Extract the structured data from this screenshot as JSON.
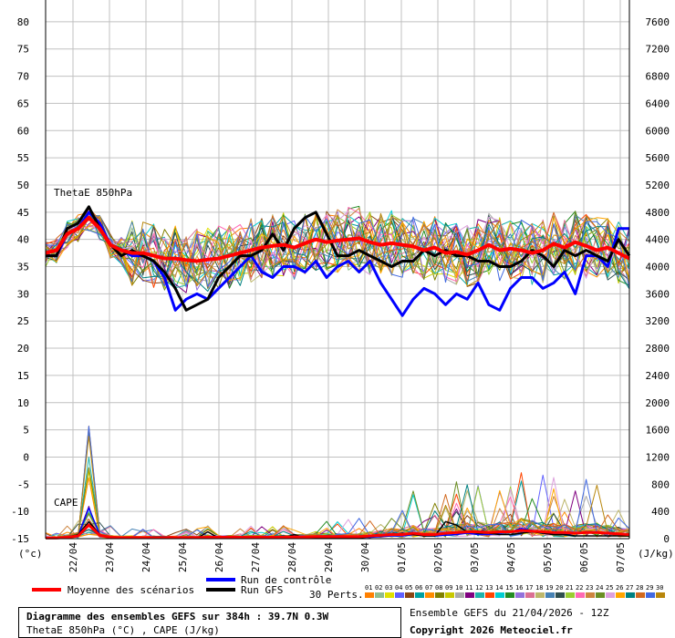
{
  "chart_data": {
    "type": "line",
    "left_axis_unit": "(°c)",
    "right_axis_unit": "(J/kg)",
    "y_left_ticks": [
      -15,
      -10,
      -5,
      0,
      5,
      10,
      15,
      20,
      25,
      30,
      35,
      40,
      45,
      50,
      55,
      60,
      65,
      70,
      75,
      80
    ],
    "y_right_ticks": [
      0,
      400,
      800,
      1200,
      1600,
      2000,
      2400,
      2800,
      3200,
      3600,
      4000,
      4400,
      4800,
      5200,
      5600,
      6000,
      6400,
      6800,
      7200,
      7600
    ],
    "ylim_left": [
      -15,
      84
    ],
    "ylim_right": [
      0,
      7920
    ],
    "x_range": [
      0,
      384
    ],
    "x_ticks": [
      {
        "label": "22/04",
        "hour": 18
      },
      {
        "label": "23/04",
        "hour": 42
      },
      {
        "label": "24/04",
        "hour": 66
      },
      {
        "label": "25/04",
        "hour": 90
      },
      {
        "label": "26/04",
        "hour": 114
      },
      {
        "label": "27/04",
        "hour": 138
      },
      {
        "label": "28/04",
        "hour": 162
      },
      {
        "label": "29/04",
        "hour": 186
      },
      {
        "label": "30/04",
        "hour": 210
      },
      {
        "label": "01/05",
        "hour": 234
      },
      {
        "label": "02/05",
        "hour": 258
      },
      {
        "label": "03/05",
        "hour": 282
      },
      {
        "label": "04/05",
        "hour": 306
      },
      {
        "label": "05/05",
        "hour": 330
      },
      {
        "label": "06/05",
        "hour": 354
      },
      {
        "label": "07/05",
        "hour": 378
      }
    ],
    "grid": true,
    "panel_labels": {
      "thetae": "ThetaE 850hPa",
      "cape": "CAPE"
    },
    "control_run": {
      "name": "Run de contrôle",
      "color": "#0000ff",
      "thetae": [
        37,
        37,
        41,
        42,
        45,
        43,
        39,
        38,
        37,
        37,
        36,
        33,
        27,
        29,
        30,
        29,
        31,
        33,
        35,
        37,
        34,
        33,
        35,
        35,
        34,
        36,
        33,
        35,
        36,
        34,
        36,
        32,
        29,
        26,
        29,
        31,
        30,
        28,
        30,
        29,
        32,
        28,
        27,
        31,
        33,
        33,
        31,
        32,
        34,
        30,
        37,
        37,
        35,
        42,
        42
      ],
      "cape": [
        10,
        10,
        20,
        40,
        450,
        60,
        10,
        10,
        5,
        5,
        5,
        5,
        5,
        5,
        5,
        5,
        5,
        5,
        5,
        5,
        10,
        10,
        10,
        10,
        10,
        20,
        20,
        10,
        20,
        20,
        20,
        30,
        40,
        40,
        60,
        40,
        40,
        50,
        60,
        80,
        60,
        60,
        80,
        100,
        150,
        120,
        80,
        60,
        60,
        80,
        100,
        100,
        80,
        60,
        60
      ]
    },
    "gfs_run": {
      "name": "Run GFS",
      "color": "#000000",
      "thetae": [
        37,
        37,
        42,
        43,
        46,
        42,
        39,
        37,
        38,
        37,
        36,
        34,
        31,
        27,
        28,
        29,
        33,
        35,
        37,
        37,
        38,
        41,
        38,
        42,
        44,
        45,
        41,
        37,
        37,
        38,
        37,
        36,
        35,
        36,
        36,
        38,
        37,
        38,
        37,
        37,
        36,
        36,
        35,
        35,
        36,
        38,
        37,
        35,
        38,
        37,
        38,
        37,
        36,
        40,
        37
      ],
      "cape": [
        10,
        10,
        20,
        60,
        250,
        60,
        10,
        10,
        5,
        5,
        5,
        5,
        5,
        5,
        5,
        100,
        10,
        5,
        5,
        5,
        5,
        5,
        5,
        60,
        10,
        10,
        10,
        10,
        10,
        10,
        30,
        40,
        50,
        80,
        60,
        40,
        40,
        250,
        200,
        100,
        80,
        80,
        60,
        60,
        80,
        100,
        80,
        60,
        60,
        40,
        40,
        40,
        40,
        40,
        40
      ]
    },
    "mean": {
      "name": "Moyenne des scénarios",
      "color": "#ff0000",
      "thetae": [
        37.5,
        38,
        41,
        42,
        44,
        42,
        39,
        38,
        37.5,
        37.5,
        37,
        36.5,
        36.5,
        36.2,
        36,
        36.3,
        36.5,
        37,
        37.5,
        38,
        38.5,
        38.8,
        39,
        38.5,
        39.3,
        40,
        39.5,
        39.8,
        40,
        40.2,
        39.5,
        39,
        39.3,
        39,
        38.7,
        38,
        38.5,
        37.5,
        37.7,
        37.2,
        38,
        39,
        38,
        38.3,
        38,
        37.5,
        38,
        39.2,
        38.5,
        39.5,
        38.8,
        38,
        38.5,
        37.5,
        36.5
      ],
      "cape": [
        10,
        10,
        20,
        40,
        200,
        50,
        20,
        15,
        15,
        15,
        15,
        15,
        15,
        15,
        15,
        20,
        20,
        20,
        20,
        20,
        20,
        20,
        20,
        25,
        25,
        30,
        30,
        30,
        30,
        30,
        40,
        50,
        60,
        60,
        80,
        60,
        60,
        80,
        90,
        100,
        100,
        90,
        100,
        100,
        120,
        110,
        100,
        90,
        90,
        80,
        90,
        90,
        80,
        70,
        60
      ]
    },
    "perturbations": {
      "label": "30 Perts.",
      "ids": [
        "01",
        "02",
        "03",
        "04",
        "05",
        "06",
        "07",
        "08",
        "09",
        "10",
        "11",
        "12",
        "13",
        "14",
        "15",
        "16",
        "17",
        "18",
        "19",
        "20",
        "21",
        "22",
        "23",
        "24",
        "25",
        "26",
        "27",
        "28",
        "29",
        "30"
      ],
      "colors": [
        "#ff8000",
        "#8fbc8f",
        "#e0e000",
        "#6060ff",
        "#8b4513",
        "#00a0a0",
        "#ff8c00",
        "#808000",
        "#c8c800",
        "#a9a9a9",
        "#800080",
        "#20b2aa",
        "#ff4500",
        "#00ced1",
        "#228b22",
        "#9370db",
        "#db7093",
        "#bdb76b",
        "#4682b4",
        "#2f4f4f",
        "#9acd32",
        "#ff69b4",
        "#cd853f",
        "#6b8e23",
        "#dda0dd",
        "#ffa500",
        "#008080",
        "#d2691e",
        "#4169e1",
        "#b8860b"
      ]
    }
  },
  "footer": {
    "title": "Diagramme des ensembles GEFS sur 384h : 39.7N 0.3W",
    "subtitle": "ThetaE 850hPa (°C) , CAPE (J/kg)",
    "run_info": "Ensemble GEFS du 21/04/2026 - 12Z",
    "copyright": "Copyright 2026 Meteociel.fr"
  }
}
